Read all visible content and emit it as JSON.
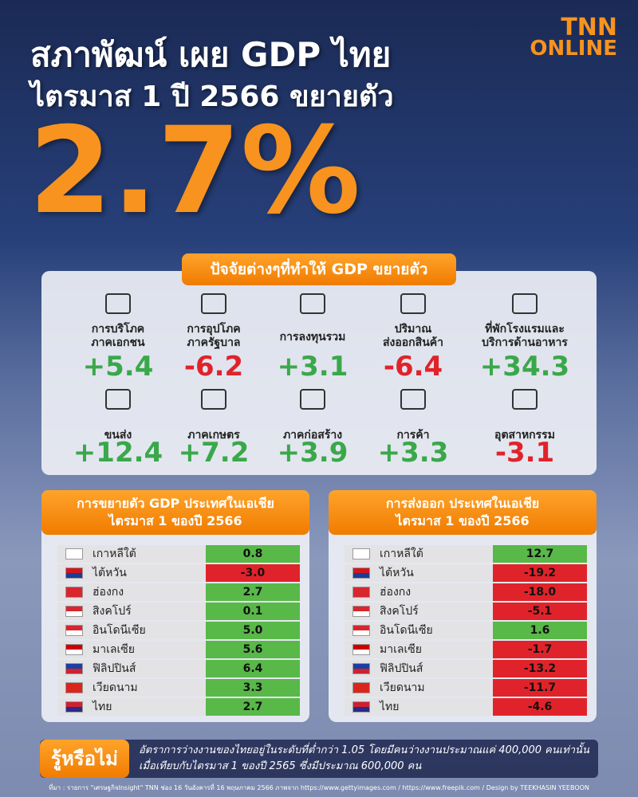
{
  "header": {
    "title_lines": [
      "สภาพัฒน์ เผย GDP ไทย",
      "ไตรมาส 1 ปี 2566 ขยายตัว"
    ],
    "headline": "2.7%",
    "brand": [
      "TNN",
      "ONLINE"
    ]
  },
  "factors": {
    "title": "ปัจจัยต่างๆที่ทำให้ GDP ขยายตัว",
    "items": [
      {
        "label": [
          "การบริโภค",
          "ภาคเอกชน"
        ],
        "value": "+5.4"
      },
      {
        "label": [
          "การอุปโภค",
          "ภาครัฐบาล"
        ],
        "value": "-6.2"
      },
      {
        "label": [
          "การลงทุนรวม"
        ],
        "value": "+3.1"
      },
      {
        "label": [
          "ปริมาณ",
          "ส่งออกสินค้า"
        ],
        "value": "-6.4"
      },
      {
        "label": [
          "ที่พักโรงแรมและ",
          "บริการด้านอาหาร"
        ],
        "value": "+34.3"
      },
      {
        "label": [
          "ขนส่ง"
        ],
        "value": "+12.4"
      },
      {
        "label": [
          "ภาคเกษตร"
        ],
        "value": "+7.2"
      },
      {
        "label": [
          "ภาคก่อสร้าง"
        ],
        "value": "+3.9"
      },
      {
        "label": [
          "การค้า"
        ],
        "value": "+3.3"
      },
      {
        "label": [
          "อุตสาหกรรม"
        ],
        "value": "-3.1"
      }
    ]
  },
  "tables": [
    {
      "title_lines": [
        "การขยายตัว GDP ประเทศในเอเชีย",
        "ไตรมาส 1 ของปี 2566"
      ],
      "rows": [
        [
          "เกาหลีใต้",
          "0.8"
        ],
        [
          "ไต้หวัน",
          "-3.0"
        ],
        [
          "ฮ่องกง",
          "2.7"
        ],
        [
          "สิงคโปร์",
          "0.1"
        ],
        [
          "อินโดนีเซีย",
          "5.0"
        ],
        [
          "มาเลเซีย",
          "5.6"
        ],
        [
          "ฟิลิปปินส์",
          "6.4"
        ],
        [
          "เวียดนาม",
          "3.3"
        ],
        [
          "ไทย",
          "2.7"
        ]
      ]
    },
    {
      "title_lines": [
        "การส่งออก ประเทศในเอเชีย",
        "ไตรมาส 1 ของปี 2566"
      ],
      "rows": [
        [
          "เกาหลีใต้",
          "12.7"
        ],
        [
          "ไต้หวัน",
          "-19.2"
        ],
        [
          "ฮ่องกง",
          "-18.0"
        ],
        [
          "สิงคโปร์",
          "-5.1"
        ],
        [
          "อินโดนีเซีย",
          "1.6"
        ],
        [
          "มาเลเซีย",
          "-1.7"
        ],
        [
          "ฟิลิปปินส์",
          "-13.2"
        ],
        [
          "เวียดนาม",
          "-11.7"
        ],
        [
          "ไทย",
          "-4.6"
        ]
      ]
    }
  ],
  "fact": {
    "label": "รู้หรือไม่",
    "lines": [
      "อัตราการว่างงานของไทยอยู่ในระดับที่ต่ำกว่า 1.05 โดยมีคนว่างงานประมาณแค่ 400,000 คนเท่านั้น",
      "เมื่อเทียบกับไตรมาส 1 ของปี 2565 ซึ่งมีประมาณ 600,000 คน"
    ]
  },
  "source": "ที่มา : รายการ \"เศรษฐกิจInsight\" TNN ช่อง 16 วันอังคารที่ 16 พฤษภาคม 2566 ภาพจาก https://www.gettyimages.com / https://www.freepik.com / Design by TEEKHASIN YEEBOON"
}
